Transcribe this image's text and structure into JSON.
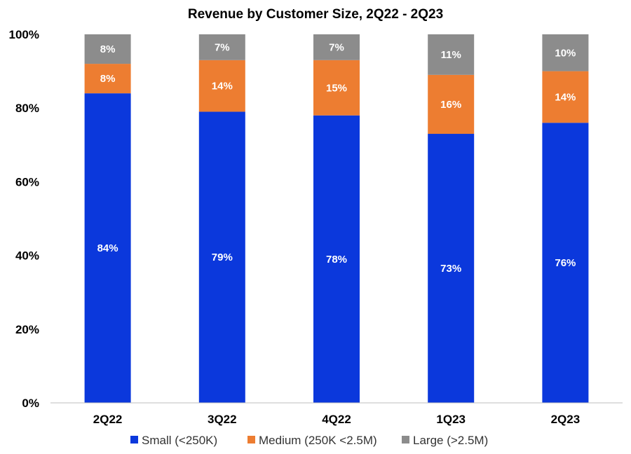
{
  "chart_data": {
    "type": "bar",
    "stacked": true,
    "title": "Revenue by Customer Size, 2Q22 - 2Q23",
    "xlabel": "",
    "ylabel": "",
    "ylim": [
      0,
      100
    ],
    "y_ticks": [
      0,
      20,
      40,
      60,
      80,
      100
    ],
    "y_tick_labels": [
      "0%",
      "20%",
      "40%",
      "60%",
      "80%",
      "100%"
    ],
    "categories": [
      "2Q22",
      "3Q22",
      "4Q22",
      "1Q23",
      "2Q23"
    ],
    "series": [
      {
        "name": "Small (<250K)",
        "color": "#0b38dc",
        "values": [
          84,
          79,
          78,
          73,
          76
        ],
        "labels": [
          "84%",
          "79%",
          "78%",
          "73%",
          "76%"
        ]
      },
      {
        "name": "Medium (250K <2.5M)",
        "color": "#ed7d31",
        "values": [
          8,
          14,
          15,
          16,
          14
        ],
        "labels": [
          "8%",
          "14%",
          "15%",
          "16%",
          "14%"
        ]
      },
      {
        "name": "Large (>2.5M)",
        "color": "#8c8c8c",
        "values": [
          8,
          7,
          7,
          11,
          10
        ],
        "labels": [
          "8%",
          "7%",
          "7%",
          "11%",
          "10%"
        ]
      }
    ],
    "grid": false,
    "legend_position": "bottom"
  }
}
